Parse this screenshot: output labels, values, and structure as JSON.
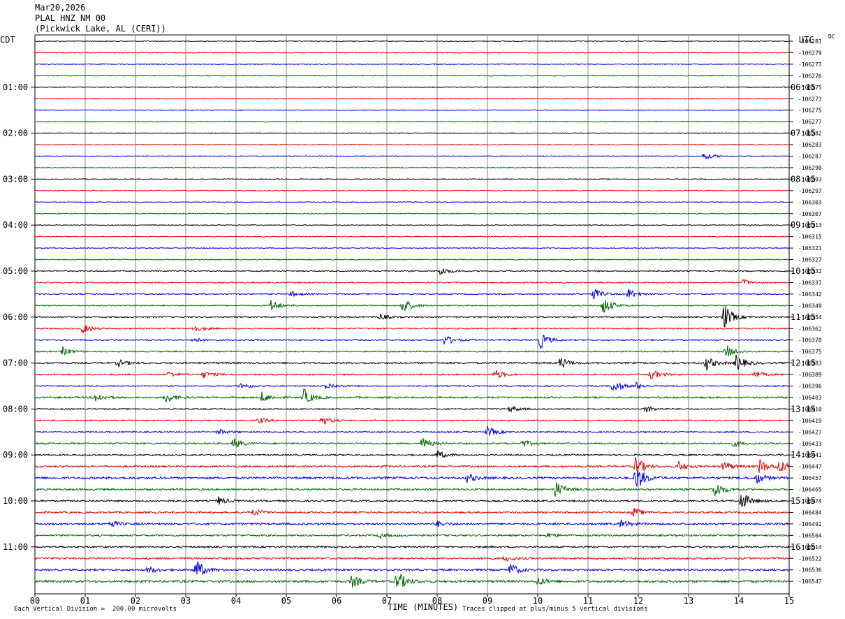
{
  "header": {
    "date": "Mar20,2026",
    "station": "PLAL HNZ NM 00",
    "location": "(Pickwick Lake, AL (CERI))"
  },
  "left_tz": "CDT",
  "right_tz": "UTC",
  "dc_label": "DC",
  "chart_data": {
    "type": "line",
    "title": "PLAL HNZ NM 00",
    "xlabel": "TIME (MINUTES)",
    "xlim": [
      0,
      15
    ],
    "x_ticks": [
      "00",
      "01",
      "02",
      "03",
      "04",
      "05",
      "06",
      "07",
      "08",
      "09",
      "10",
      "11",
      "12",
      "13",
      "14",
      "15"
    ],
    "trace_minutes": 15,
    "trace_colors": [
      "#000000",
      "#e00000",
      "#0000e0",
      "#006400"
    ],
    "left_time_labels": [
      "01:00",
      "02:00",
      "03:00",
      "04:00",
      "05:00",
      "06:00",
      "07:00",
      "08:00",
      "09:00",
      "10:00",
      "11:00"
    ],
    "right_time_labels": [
      "06:15",
      "07:15",
      "08:15",
      "09:15",
      "10:15",
      "11:15",
      "12:15",
      "13:15",
      "14:15",
      "15:15",
      "16:15"
    ],
    "dc_offsets": [
      "-106281",
      "-106279",
      "-106277",
      "-106276",
      "-106275",
      "-106273",
      "-106275",
      "-106277",
      "-106282",
      "-106283",
      "-106287",
      "-106290",
      "-106293",
      "-106297",
      "-106303",
      "-106307",
      "-106313",
      "-106315",
      "-106321",
      "-106327",
      "-106332",
      "-106337",
      "-106342",
      "-106349",
      "-106354",
      "-106362",
      "-106370",
      "-106375",
      "-106383",
      "-106389",
      "-106396",
      "-106403",
      "-106410",
      "-106419",
      "-106427",
      "-106433",
      "-106441",
      "-106447",
      "-106457",
      "-106465",
      "-106474",
      "-106484",
      "-106492",
      "-106504",
      "-106514",
      "-106522",
      "-106536",
      "-106547"
    ],
    "noise": [
      0.6,
      0.6,
      0.6,
      0.6,
      0.6,
      0.6,
      0.6,
      0.6,
      0.6,
      0.6,
      0.6,
      0.6,
      0.6,
      0.6,
      0.6,
      0.6,
      0.6,
      0.6,
      0.6,
      0.6,
      0.8,
      0.8,
      0.8,
      0.8,
      0.9,
      0.9,
      0.9,
      0.9,
      1.2,
      1.0,
      0.9,
      1.2,
      0.9,
      0.9,
      1.0,
      1.1,
      1.1,
      1.3,
      1.5,
      1.3,
      1.2,
      1.2,
      1.4,
      1.2,
      1.2,
      1.3,
      1.4,
      1.6
    ],
    "events": [
      {
        "trace": 10,
        "minute": 13.3,
        "amp": 6
      },
      {
        "trace": 20,
        "minute": 8.05,
        "amp": 7
      },
      {
        "trace": 21,
        "minute": 14.1,
        "amp": 5
      },
      {
        "trace": 22,
        "minute": 5.1,
        "amp": 4
      },
      {
        "trace": 22,
        "minute": 11.1,
        "amp": 9
      },
      {
        "trace": 22,
        "minute": 11.8,
        "amp": 8
      },
      {
        "trace": 23,
        "minute": 4.7,
        "amp": 9
      },
      {
        "trace": 23,
        "minute": 7.3,
        "amp": 13
      },
      {
        "trace": 23,
        "minute": 11.3,
        "amp": 14
      },
      {
        "trace": 24,
        "minute": 6.85,
        "amp": 5
      },
      {
        "trace": 24,
        "minute": 13.7,
        "amp": 20
      },
      {
        "trace": 25,
        "minute": 0.95,
        "amp": 7
      },
      {
        "trace": 25,
        "minute": 3.15,
        "amp": 6
      },
      {
        "trace": 26,
        "minute": 3.15,
        "amp": 4
      },
      {
        "trace": 26,
        "minute": 8.15,
        "amp": 8
      },
      {
        "trace": 26,
        "minute": 10.05,
        "amp": 12
      },
      {
        "trace": 27,
        "minute": 0.55,
        "amp": 6
      },
      {
        "trace": 27,
        "minute": 13.75,
        "amp": 10
      },
      {
        "trace": 28,
        "minute": 1.65,
        "amp": 5
      },
      {
        "trace": 28,
        "minute": 10.45,
        "amp": 9
      },
      {
        "trace": 28,
        "minute": 13.35,
        "amp": 10
      },
      {
        "trace": 28,
        "minute": 13.95,
        "amp": 12
      },
      {
        "trace": 29,
        "minute": 2.65,
        "amp": 4
      },
      {
        "trace": 29,
        "minute": 3.35,
        "amp": 5
      },
      {
        "trace": 29,
        "minute": 9.15,
        "amp": 7
      },
      {
        "trace": 29,
        "minute": 12.25,
        "amp": 8
      },
      {
        "trace": 29,
        "minute": 14.3,
        "amp": 6
      },
      {
        "trace": 30,
        "minute": 4.1,
        "amp": 5
      },
      {
        "trace": 30,
        "minute": 5.8,
        "amp": 5
      },
      {
        "trace": 30,
        "minute": 11.5,
        "amp": 10
      },
      {
        "trace": 30,
        "minute": 11.95,
        "amp": 5
      },
      {
        "trace": 31,
        "minute": 1.2,
        "amp": 7
      },
      {
        "trace": 31,
        "minute": 2.6,
        "amp": 8
      },
      {
        "trace": 31,
        "minute": 4.5,
        "amp": 8
      },
      {
        "trace": 31,
        "minute": 5.35,
        "amp": 12
      },
      {
        "trace": 32,
        "minute": 9.45,
        "amp": 5
      },
      {
        "trace": 32,
        "minute": 12.15,
        "amp": 5
      },
      {
        "trace": 33,
        "minute": 4.45,
        "amp": 4
      },
      {
        "trace": 33,
        "minute": 5.7,
        "amp": 7
      },
      {
        "trace": 34,
        "minute": 3.65,
        "amp": 4
      },
      {
        "trace": 34,
        "minute": 9.0,
        "amp": 8
      },
      {
        "trace": 35,
        "minute": 3.95,
        "amp": 8
      },
      {
        "trace": 35,
        "minute": 7.7,
        "amp": 9
      },
      {
        "trace": 35,
        "minute": 9.7,
        "amp": 5
      },
      {
        "trace": 35,
        "minute": 13.9,
        "amp": 4
      },
      {
        "trace": 36,
        "minute": 8.0,
        "amp": 6
      },
      {
        "trace": 37,
        "minute": 11.95,
        "amp": 14
      },
      {
        "trace": 37,
        "minute": 12.8,
        "amp": 7
      },
      {
        "trace": 37,
        "minute": 13.7,
        "amp": 8
      },
      {
        "trace": 37,
        "minute": 14.4,
        "amp": 12
      },
      {
        "trace": 37,
        "minute": 14.8,
        "amp": 9
      },
      {
        "trace": 38,
        "minute": 8.6,
        "amp": 6
      },
      {
        "trace": 38,
        "minute": 11.95,
        "amp": 20
      },
      {
        "trace": 38,
        "minute": 14.35,
        "amp": 8
      },
      {
        "trace": 39,
        "minute": 10.35,
        "amp": 12
      },
      {
        "trace": 39,
        "minute": 13.5,
        "amp": 14
      },
      {
        "trace": 40,
        "minute": 3.65,
        "amp": 6
      },
      {
        "trace": 40,
        "minute": 14.05,
        "amp": 14
      },
      {
        "trace": 41,
        "minute": 4.35,
        "amp": 5
      },
      {
        "trace": 41,
        "minute": 11.9,
        "amp": 7
      },
      {
        "trace": 42,
        "minute": 1.5,
        "amp": 5
      },
      {
        "trace": 42,
        "minute": 8.0,
        "amp": 4
      },
      {
        "trace": 42,
        "minute": 11.65,
        "amp": 6
      },
      {
        "trace": 43,
        "minute": 6.85,
        "amp": 4
      },
      {
        "trace": 43,
        "minute": 10.2,
        "amp": 4
      },
      {
        "trace": 45,
        "minute": 9.35,
        "amp": 4
      },
      {
        "trace": 46,
        "minute": 3.2,
        "amp": 16
      },
      {
        "trace": 46,
        "minute": 9.45,
        "amp": 10
      },
      {
        "trace": 46,
        "minute": 2.25,
        "amp": 5
      },
      {
        "trace": 47,
        "minute": 6.3,
        "amp": 9
      },
      {
        "trace": 47,
        "minute": 7.2,
        "amp": 16
      },
      {
        "trace": 47,
        "minute": 10.0,
        "amp": 6
      }
    ]
  },
  "footer": {
    "division": "Each Vertical Division =  200.00 microvolts",
    "clipped": "Traces clipped at plus/minus 5 vertical divisions"
  }
}
